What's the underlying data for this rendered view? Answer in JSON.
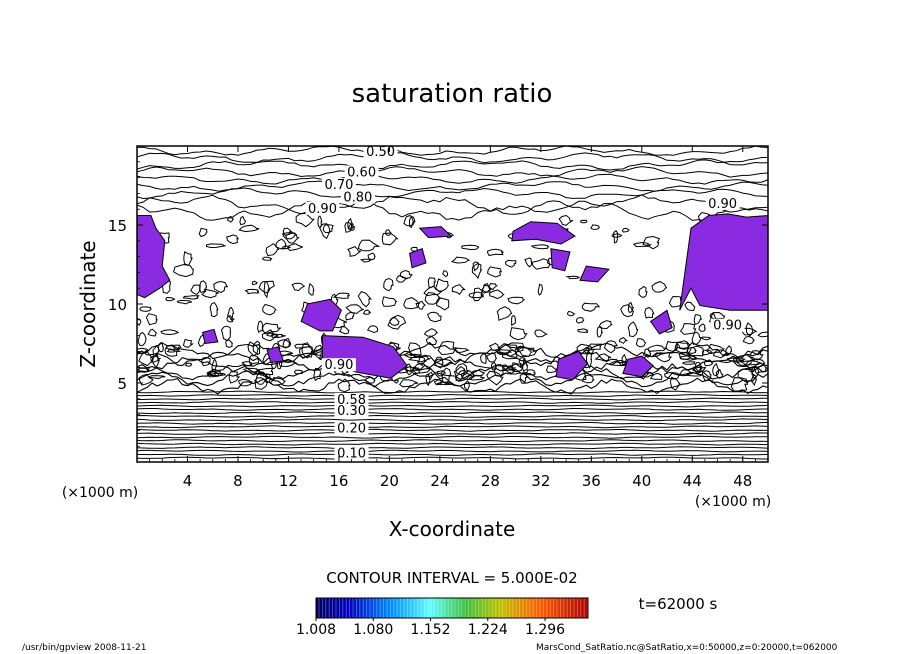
{
  "chart_data": {
    "type": "contour",
    "title": "saturation ratio",
    "xlabel": "X-coordinate",
    "ylabel": "Z-coordinate",
    "x_unit": "(×1000 m)",
    "z_unit": "(×1000 m)",
    "xlim": [
      0,
      50
    ],
    "ylim": [
      0,
      20
    ],
    "x_ticks": [
      "4",
      "8",
      "12",
      "16",
      "20",
      "24",
      "28",
      "32",
      "36",
      "40",
      "44",
      "48"
    ],
    "x_tick_values": [
      4,
      8,
      12,
      16,
      20,
      24,
      28,
      32,
      36,
      40,
      44,
      48
    ],
    "y_ticks": [
      "5",
      "10",
      "15"
    ],
    "y_tick_values": [
      5,
      10,
      15
    ],
    "contour_labels": [
      {
        "text": "0.50",
        "x": 19.3,
        "z": 19.5
      },
      {
        "text": "0.60",
        "x": 17.8,
        "z": 18.2
      },
      {
        "text": "0.70",
        "x": 16.0,
        "z": 17.4
      },
      {
        "text": "0.80",
        "x": 17.5,
        "z": 16.6
      },
      {
        "text": "0.90",
        "x": 14.7,
        "z": 15.9
      },
      {
        "text": "0.90",
        "x": 46.4,
        "z": 16.2
      },
      {
        "text": "0.90",
        "x": 46.8,
        "z": 8.5
      },
      {
        "text": "0.90",
        "x": 16.0,
        "z": 6.0
      },
      {
        "text": "0.58",
        "x": 17.0,
        "z": 3.8
      },
      {
        "text": "0.30",
        "x": 17.0,
        "z": 3.1
      },
      {
        "text": "0.20",
        "x": 17.0,
        "z": 2.0
      },
      {
        "text": "0.10",
        "x": 17.0,
        "z": 0.4
      }
    ],
    "supersaturated_regions": [
      {
        "x": [
          0,
          1.1,
          1.5,
          2.2,
          2.0,
          2.6,
          1.8,
          0.6,
          0
        ],
        "z": [
          15.6,
          15.6,
          14.8,
          14.0,
          12.4,
          11.5,
          11.0,
          10.4,
          10.6
        ]
      },
      {
        "x": [
          43.9,
          45.3,
          46.8,
          48.3,
          50,
          50,
          47.0,
          44.6,
          43.9,
          43.0
        ],
        "z": [
          14.8,
          15.6,
          15.7,
          15.5,
          15.6,
          9.6,
          9.6,
          9.9,
          11.0,
          9.6
        ]
      },
      {
        "x": [
          13.5,
          15.3,
          16.2,
          15.5,
          14.5,
          13.0
        ],
        "z": [
          10.0,
          10.3,
          9.6,
          8.3,
          8.3,
          8.9
        ]
      },
      {
        "x": [
          14.7,
          17.9,
          20.3,
          21.4,
          20.1,
          17.3,
          14.7
        ],
        "z": [
          8.0,
          7.9,
          7.3,
          6.1,
          5.3,
          5.7,
          6.6
        ]
      },
      {
        "x": [
          22.4,
          24.1,
          24.9,
          23.1
        ],
        "z": [
          14.8,
          14.9,
          14.3,
          14.2
        ]
      },
      {
        "x": [
          29.8,
          31.2,
          33.3,
          34.7,
          33.6,
          31.6,
          29.7
        ],
        "z": [
          14.6,
          15.2,
          15.1,
          14.3,
          13.8,
          14.1,
          14.0
        ]
      },
      {
        "x": [
          32.8,
          34.3,
          33.9,
          32.9
        ],
        "z": [
          13.5,
          13.3,
          12.1,
          12.3
        ]
      },
      {
        "x": [
          35.6,
          37.4,
          36.5,
          35.1
        ],
        "z": [
          12.4,
          12.2,
          11.4,
          11.5
        ]
      },
      {
        "x": [
          33.4,
          35.0,
          35.7,
          34.5,
          33.2
        ],
        "z": [
          6.5,
          7.0,
          6.2,
          5.2,
          5.4
        ]
      },
      {
        "x": [
          38.9,
          40.0,
          40.9,
          40.0,
          38.5
        ],
        "z": [
          6.5,
          6.7,
          6.1,
          5.4,
          5.6
        ]
      },
      {
        "x": [
          40.7,
          42.0,
          42.4,
          41.4
        ],
        "z": [
          8.9,
          9.6,
          8.5,
          8.1
        ]
      },
      {
        "x": [
          5.2,
          6.1,
          6.4,
          5.4
        ],
        "z": [
          8.2,
          8.4,
          7.6,
          7.5
        ]
      },
      {
        "x": [
          10.3,
          11.2,
          11.6,
          10.6
        ],
        "z": [
          7.1,
          7.3,
          6.4,
          6.3
        ]
      },
      {
        "x": [
          21.6,
          22.6,
          22.9,
          21.8
        ],
        "z": [
          13.2,
          13.5,
          12.6,
          12.3
        ]
      }
    ],
    "contour_interval": "CONTOUR INTERVAL = 5.000E-02",
    "colorbar": {
      "ticks": [
        "1.008",
        "1.080",
        "1.152",
        "1.224",
        "1.296"
      ],
      "tick_values": [
        1.008,
        1.08,
        1.152,
        1.224,
        1.296
      ],
      "range": [
        1.008,
        1.35
      ]
    },
    "time_label": "t=62000 s"
  },
  "footer": {
    "program": "/usr/bin/gpview   2008-11-21",
    "source": "MarsCond_SatRatio.nc@SatRatio,x=0:50000,z=0:20000,t=062000"
  },
  "colors": {
    "supersat_fill": "#8a2be2",
    "line": "#000000"
  }
}
